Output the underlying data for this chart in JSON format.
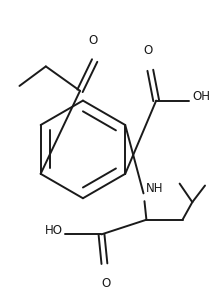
{
  "bg_color": "#ffffff",
  "line_color": "#1a1a1a",
  "line_width": 1.4,
  "figsize": [
    2.16,
    2.92
  ],
  "dpi": 100,
  "font_size": 8.5,
  "xlim": [
    0,
    216
  ],
  "ylim": [
    0,
    292
  ]
}
